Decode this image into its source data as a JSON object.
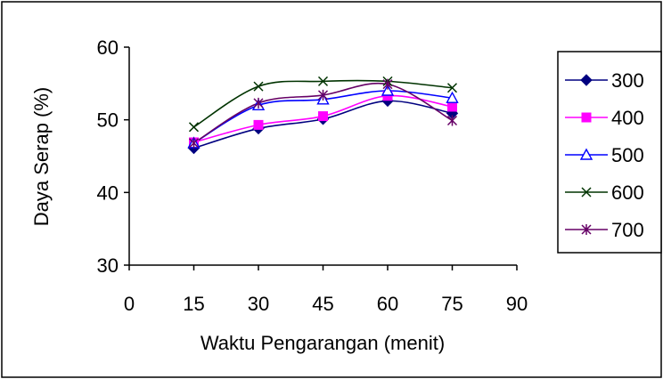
{
  "chart_data": {
    "type": "line",
    "xlabel": "Waktu Pengarangan (menit)",
    "ylabel": "Daya Serap (%)",
    "xlim": [
      0,
      90
    ],
    "ylim": [
      30,
      60
    ],
    "xticks": [
      0,
      15,
      30,
      45,
      60,
      75,
      90
    ],
    "yticks": [
      30,
      40,
      50,
      60
    ],
    "grid": false,
    "legend_position": "right",
    "x": [
      15,
      30,
      45,
      60,
      75
    ],
    "series": [
      {
        "name": "300",
        "color": "#000080",
        "marker": "diamond",
        "values": [
          46.1,
          48.8,
          50.1,
          52.6,
          50.9
        ]
      },
      {
        "name": "400",
        "color": "#FF00FF",
        "marker": "square",
        "values": [
          46.9,
          49.3,
          50.5,
          53.3,
          51.8
        ]
      },
      {
        "name": "500",
        "color": "#0000FF",
        "marker": "triangle",
        "values": [
          46.8,
          52.0,
          52.8,
          54.0,
          53.0
        ]
      },
      {
        "name": "600",
        "color": "#003300",
        "marker": "x",
        "values": [
          49.0,
          54.6,
          55.3,
          55.3,
          54.4
        ]
      },
      {
        "name": "700",
        "color": "#660066",
        "marker": "star",
        "values": [
          46.8,
          52.3,
          53.4,
          54.9,
          49.9
        ]
      }
    ]
  }
}
